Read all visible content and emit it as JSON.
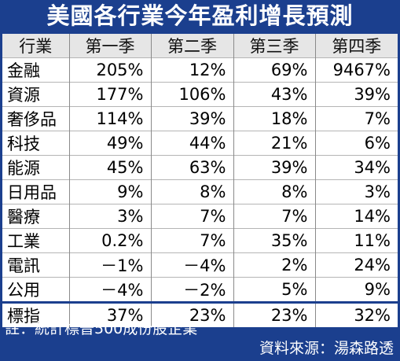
{
  "title": "美國各行業今年盈利增長預測",
  "headers": [
    "行業",
    "第一季",
    "第二季",
    "第三季",
    "第四季"
  ],
  "rows": [
    [
      "金融",
      "205%",
      "12%",
      "69%",
      "9467%"
    ],
    [
      "資源",
      "177%",
      "106%",
      "43%",
      "39%"
    ],
    [
      "奢侈品",
      "114%",
      "39%",
      "18%",
      "7%"
    ],
    [
      "科技",
      "49%",
      "44%",
      "21%",
      "6%"
    ],
    [
      "能源",
      "45%",
      "63%",
      "39%",
      "34%"
    ],
    [
      "日用品",
      "9%",
      "8%",
      "8%",
      "3%"
    ],
    [
      "醫療",
      "3%",
      "7%",
      "7%",
      "14%"
    ],
    [
      "工業",
      "0.2%",
      "7%",
      "35%",
      "11%"
    ],
    [
      "電訊",
      "－1%",
      "－4%",
      "2%",
      "24%"
    ],
    [
      "公用",
      "－4%",
      "－2%",
      "5%",
      "9%"
    ]
  ],
  "total_row": [
    "標指",
    "37%",
    "23%",
    "23%",
    "32%"
  ],
  "note": "註：統計標普500成份股企業",
  "source": "資料來源：湯森路透",
  "colors": {
    "background": "#1b3f8e",
    "header_bg": "#e6e6e6",
    "cell_bg": "#ffffff"
  }
}
